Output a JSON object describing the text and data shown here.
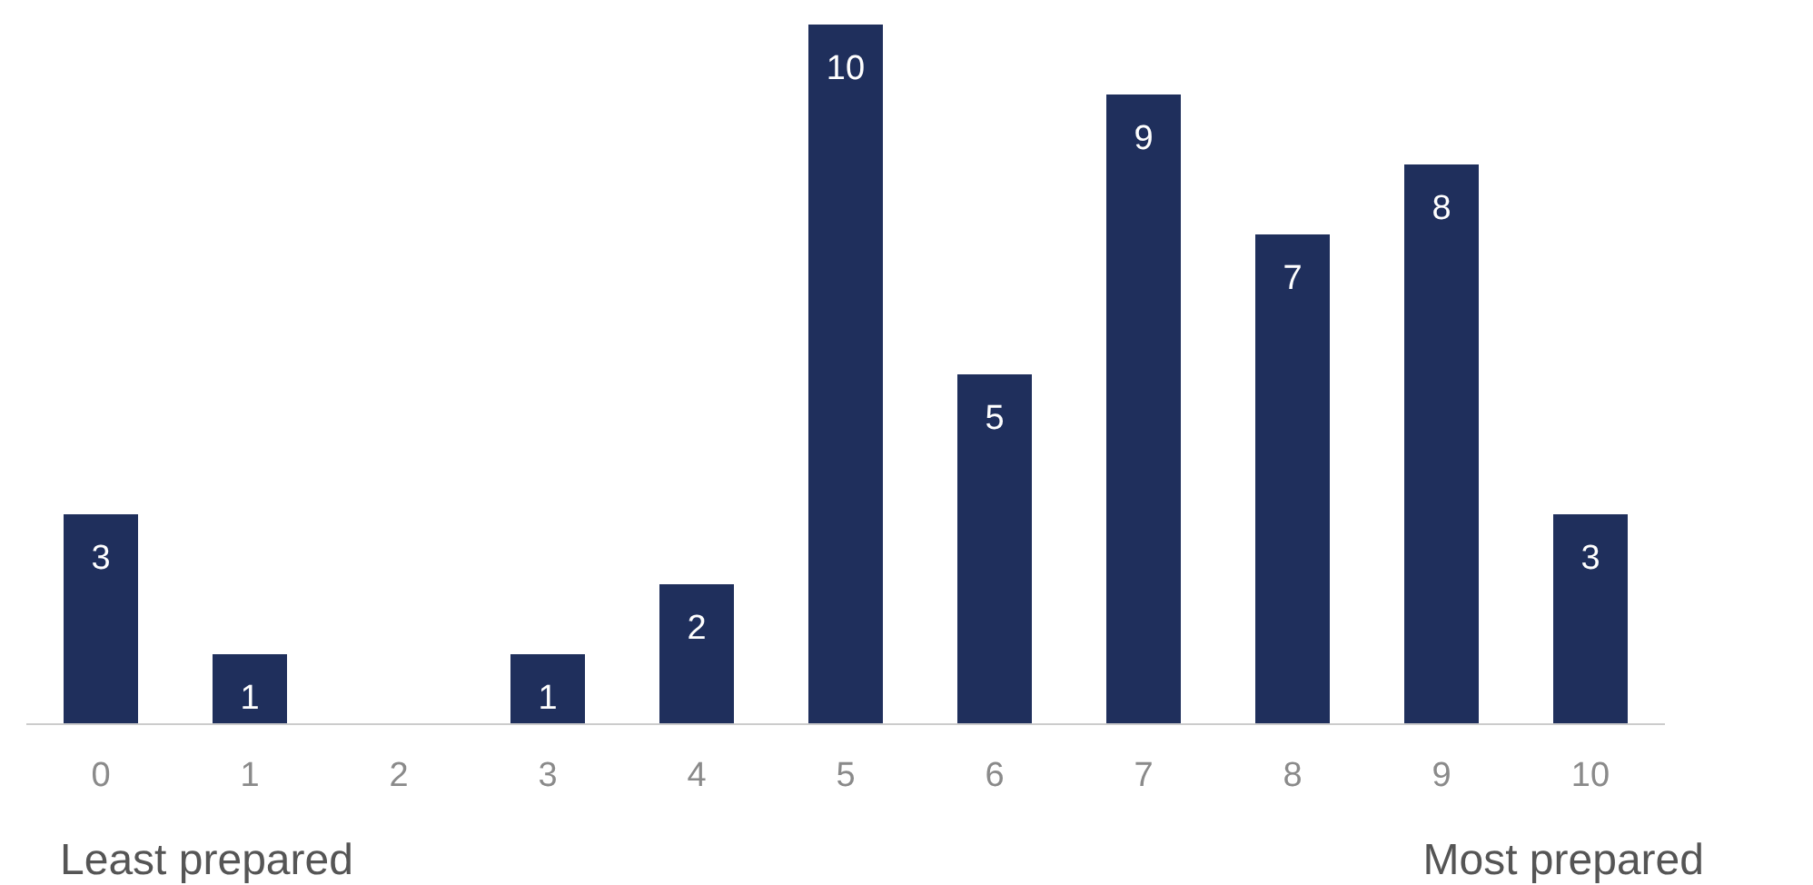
{
  "chart_data": {
    "type": "bar",
    "categories": [
      "0",
      "1",
      "2",
      "3",
      "4",
      "5",
      "6",
      "7",
      "8",
      "9",
      "10"
    ],
    "values": [
      3,
      1,
      0,
      1,
      2,
      10,
      5,
      9,
      7,
      8,
      3
    ],
    "value_labels": [
      "3",
      "1",
      null,
      "1",
      "2",
      "10",
      "5",
      "9",
      "7",
      "8",
      "3"
    ],
    "color": "#1f2f5c",
    "grid": false,
    "annotations": [
      "Least prepared",
      "Most prepared"
    ]
  }
}
